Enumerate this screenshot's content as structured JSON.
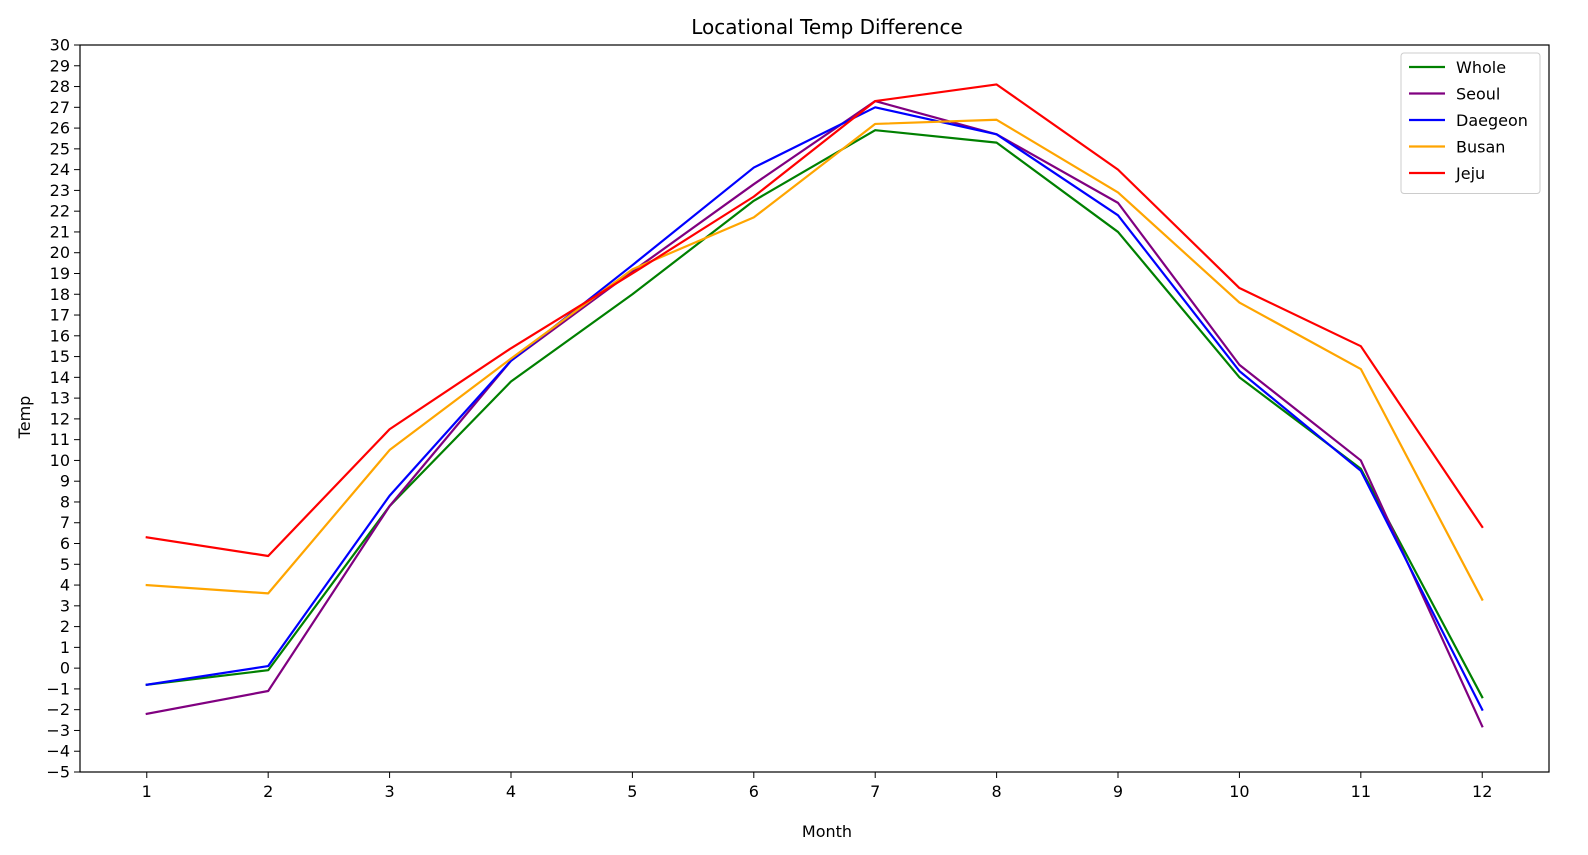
{
  "chart_data": {
    "type": "line",
    "title": "Locational Temp Difference",
    "xlabel": "Month",
    "ylabel": "Temp",
    "x": [
      1,
      2,
      3,
      4,
      5,
      6,
      7,
      8,
      9,
      10,
      11,
      12
    ],
    "xlim": [
      0.45,
      12.55
    ],
    "ylim": [
      -5,
      30
    ],
    "yticks": [
      -5,
      -4,
      -3,
      -2,
      -1,
      0,
      1,
      2,
      3,
      4,
      5,
      6,
      7,
      8,
      9,
      10,
      11,
      12,
      13,
      14,
      15,
      16,
      17,
      18,
      19,
      20,
      21,
      22,
      23,
      24,
      25,
      26,
      27,
      28,
      29,
      30
    ],
    "grid": false,
    "legend_position": "top-right",
    "series": [
      {
        "name": "Whole",
        "color": "#008000",
        "values": [
          -0.8,
          -0.1,
          7.8,
          13.8,
          18.0,
          22.5,
          25.9,
          25.3,
          21.0,
          14.0,
          9.6,
          -1.4
        ]
      },
      {
        "name": "Seoul",
        "color": "#800080",
        "values": [
          -2.2,
          -1.1,
          7.8,
          14.8,
          19.1,
          23.3,
          27.3,
          25.7,
          22.4,
          14.6,
          10.0,
          -2.8
        ]
      },
      {
        "name": "Daegeon",
        "color": "#0000ff",
        "values": [
          -0.8,
          0.1,
          8.3,
          14.8,
          19.4,
          24.1,
          27.0,
          25.7,
          21.8,
          14.3,
          9.5,
          -2.0
        ]
      },
      {
        "name": "Busan",
        "color": "#ffa500",
        "values": [
          4.0,
          3.6,
          10.5,
          14.9,
          19.2,
          21.7,
          26.2,
          26.4,
          22.9,
          17.6,
          14.4,
          3.3
        ]
      },
      {
        "name": "Jeju",
        "color": "#ff0000",
        "values": [
          6.3,
          5.4,
          11.5,
          15.4,
          19.0,
          22.7,
          27.3,
          28.1,
          24.0,
          18.3,
          15.5,
          6.8
        ]
      }
    ]
  }
}
